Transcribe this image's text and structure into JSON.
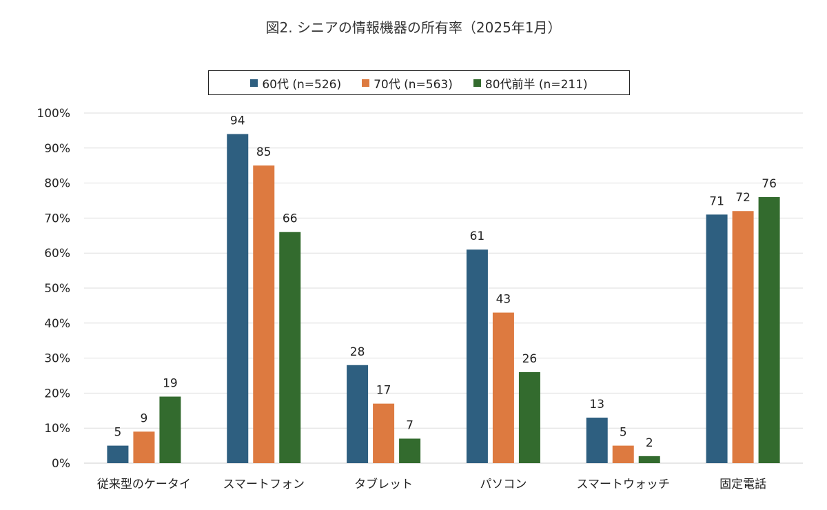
{
  "chart_data": {
    "type": "bar",
    "title": "図2. シニアの情報機器の所有率（2025年1月）",
    "xlabel": "",
    "ylabel": "",
    "ylim": [
      0,
      100
    ],
    "y_ticks": [
      "0%",
      "10%",
      "20%",
      "30%",
      "40%",
      "50%",
      "60%",
      "70%",
      "80%",
      "90%",
      "100%"
    ],
    "grid": true,
    "legend_position": "top-center",
    "categories": [
      "従来型のケータイ",
      "スマートフォン",
      "タブレット",
      "パソコン",
      "スマートウォッチ",
      "固定電話"
    ],
    "series": [
      {
        "name": "60代 (n=526)",
        "color": "#2e5f80",
        "values": [
          5,
          94,
          28,
          61,
          13,
          71
        ]
      },
      {
        "name": "70代 (n=563)",
        "color": "#dd7a40",
        "values": [
          9,
          85,
          17,
          43,
          5,
          72
        ]
      },
      {
        "name": "80代前半 (n=211)",
        "color": "#336b2e",
        "values": [
          19,
          66,
          7,
          26,
          2,
          76
        ]
      }
    ]
  }
}
